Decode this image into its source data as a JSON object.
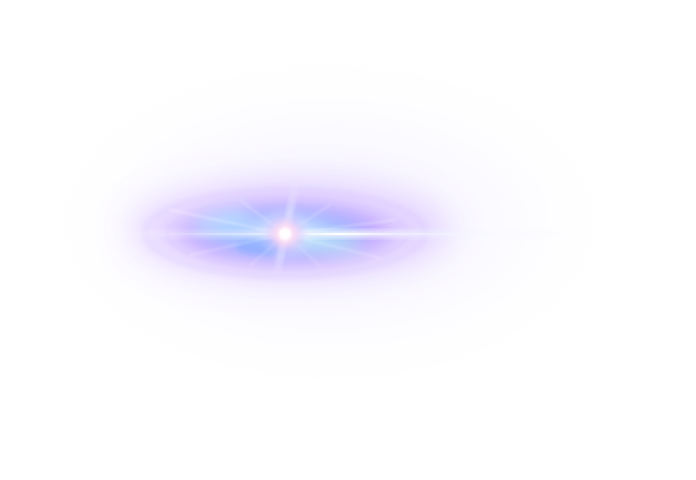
{
  "image": {
    "subject": "lens-flare",
    "background_color": "#ffffff",
    "colors": {
      "core": "#ffffff",
      "inner_glow": "#ffd6f2",
      "blue": "#8fb4ff",
      "cyan": "#bff4ff",
      "violet": "#a66bff",
      "lavender": "#e9e1ff",
      "haze": "#f2f0ff"
    }
  }
}
